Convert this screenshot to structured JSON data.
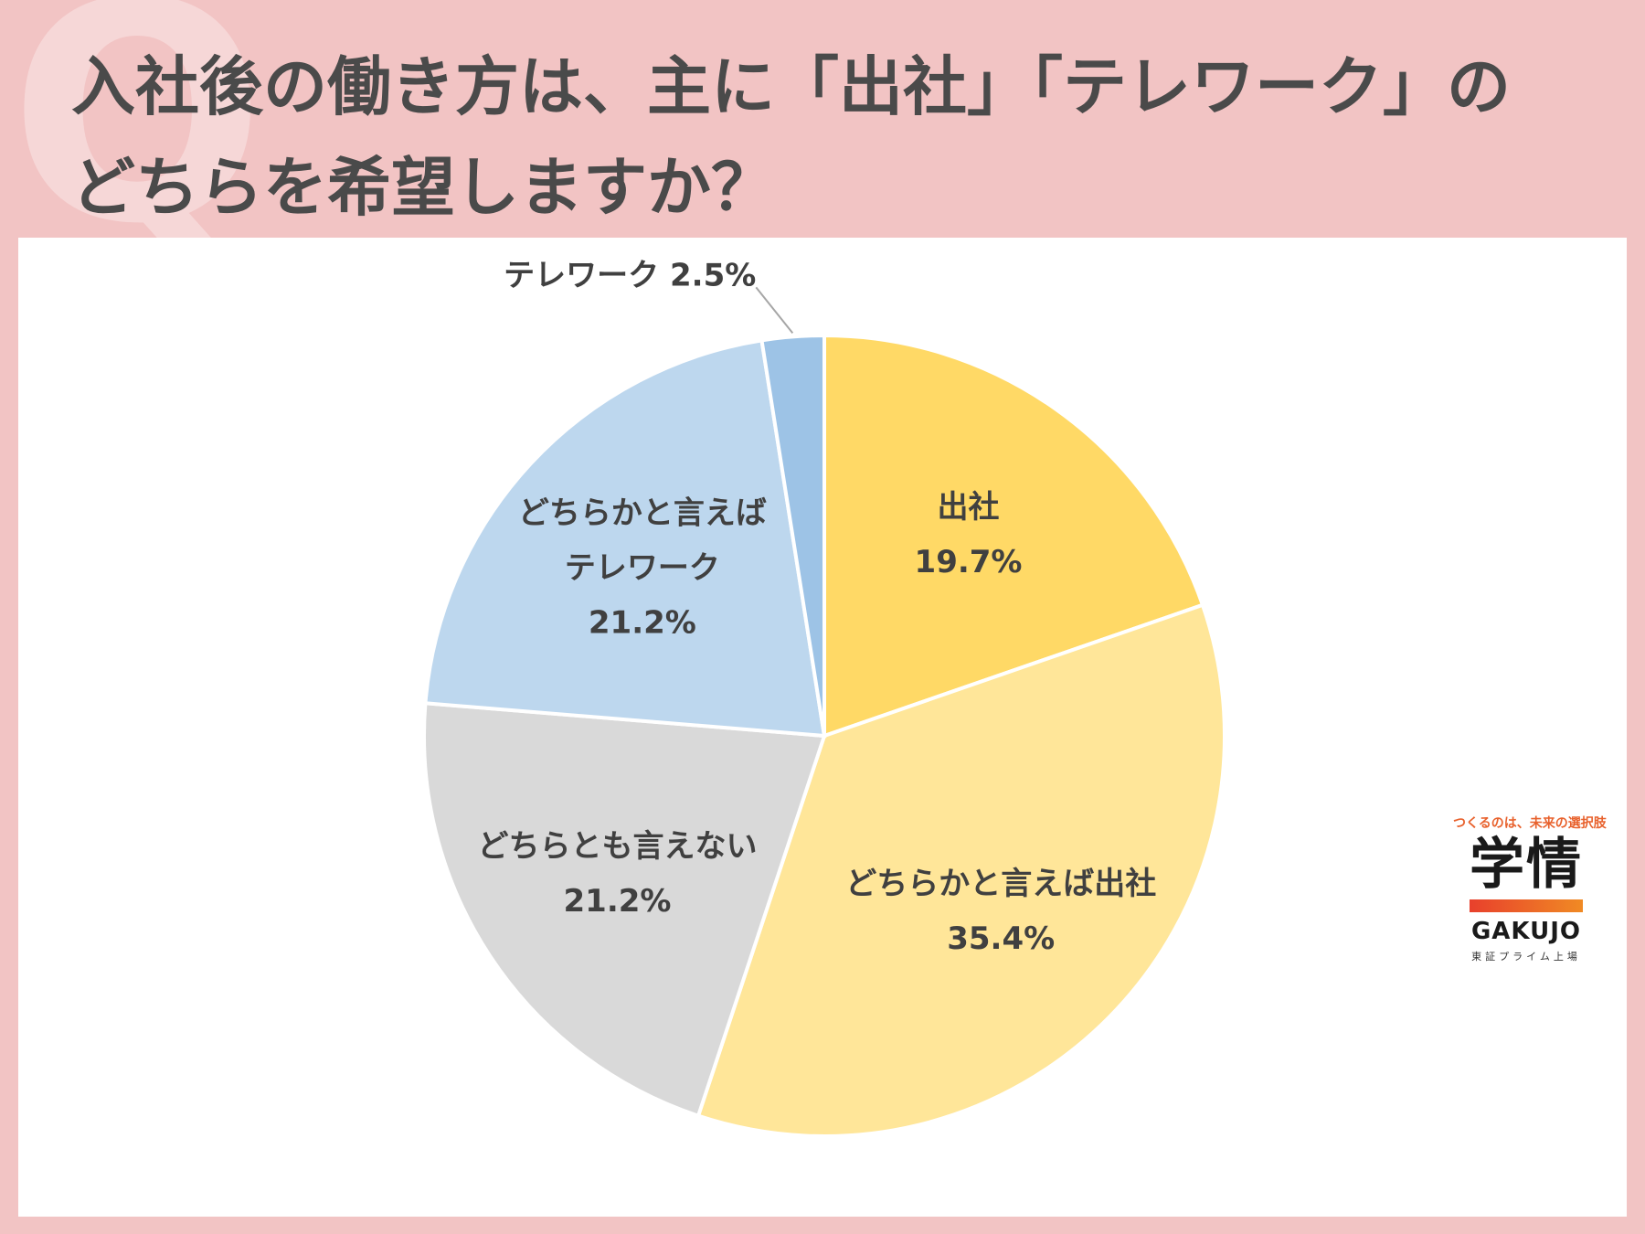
{
  "title": {
    "line1": "入社後の働き方は、主に「出社」「テレワーク」の",
    "line2": "どちらを希望しますか？"
  },
  "chart_data": {
    "type": "pie",
    "start_angle_deg": 0,
    "direction": "clockwise",
    "slices": [
      {
        "label_lines": [
          "出社"
        ],
        "value": 19.7,
        "value_label": "19.7%",
        "color": "#ffd966"
      },
      {
        "label_lines": [
          "どちらかと言えば出社"
        ],
        "value": 35.4,
        "value_label": "35.4%",
        "color": "#ffe699"
      },
      {
        "label_lines": [
          "どちらとも言えない"
        ],
        "value": 21.2,
        "value_label": "21.2%",
        "color": "#d9d9d9"
      },
      {
        "label_lines": [
          "どちらかと言えば",
          "テレワーク"
        ],
        "value": 21.2,
        "value_label": "21.2%",
        "color": "#bdd7ee"
      },
      {
        "label_lines": [
          "テレワーク"
        ],
        "value": 2.5,
        "value_label": "2.5%",
        "color": "#9dc3e6",
        "label_outside": true
      }
    ]
  },
  "logo": {
    "tagline": "つくるのは、未来の選択肢",
    "mark": "学情",
    "en": "GAKUJO",
    "sub": "東証プライム上場"
  }
}
